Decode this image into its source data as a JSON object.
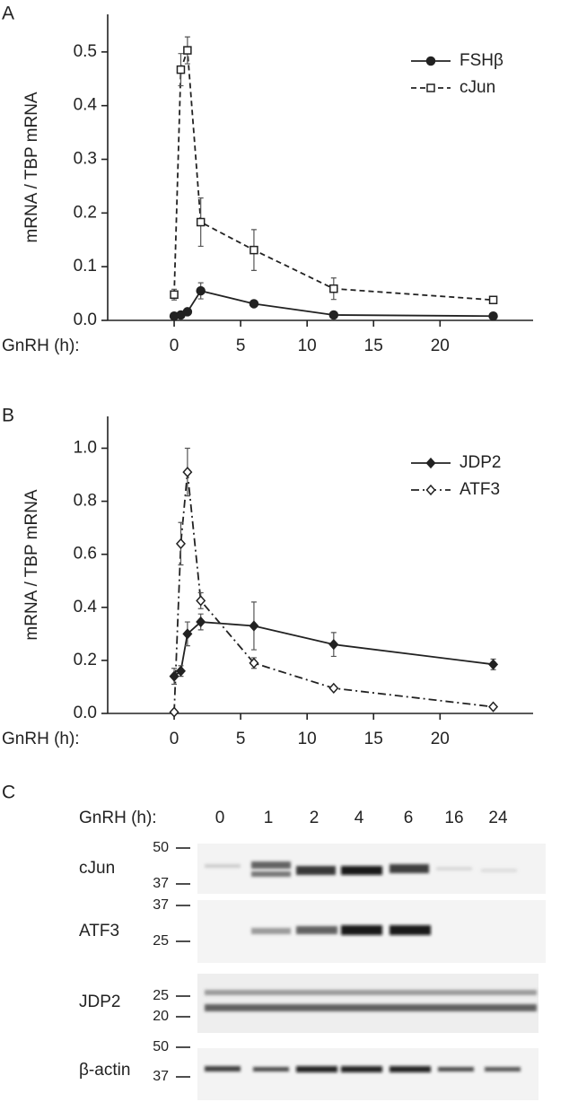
{
  "chart_data": [
    {
      "type": "line",
      "panel": "A",
      "y_label": "mRNA / TBP mRNA",
      "x_label": "GnRH (h):",
      "x": [
        0,
        0.5,
        1,
        2,
        6,
        12,
        24
      ],
      "xlim": [
        -5,
        27
      ],
      "xticks": [
        0,
        5,
        10,
        15,
        20
      ],
      "ylim": [
        0,
        0.57
      ],
      "yticks": [
        {
          "value": 0,
          "label": "0.0"
        },
        0.1,
        0.2,
        0.3,
        0.4,
        0.5
      ],
      "legend": "upper right",
      "series": [
        {
          "name": "FSHβ",
          "color": "#222222",
          "linestyle": "solid",
          "marker": "circle",
          "filled": true,
          "values": [
            0.008,
            0.01,
            0.016,
            0.055,
            0.031,
            0.01,
            0.008
          ],
          "errors": [
            0.002,
            0.002,
            0.003,
            0.015,
            0.004,
            0.002,
            0.002
          ]
        },
        {
          "name": "cJun",
          "color": "#222222",
          "linestyle": "dashed",
          "marker": "square",
          "filled": false,
          "values": [
            0.048,
            0.467,
            0.503,
            0.183,
            0.131,
            0.059,
            0.038
          ],
          "errors": [
            0.01,
            0.03,
            0.025,
            0.045,
            0.038,
            0.02,
            0.005
          ]
        }
      ]
    },
    {
      "type": "line",
      "panel": "B",
      "y_label": "mRNA / TBP mRNA",
      "x_label": "GnRH (h):",
      "x": [
        0,
        0.5,
        1,
        2,
        6,
        12,
        24
      ],
      "xlim": [
        -5,
        27
      ],
      "xticks": [
        0,
        5,
        10,
        15,
        20
      ],
      "ylim": [
        0,
        1.12
      ],
      "yticks": [
        {
          "value": 0,
          "label": "0.0"
        },
        0.2,
        0.4,
        0.6,
        0.8,
        {
          "value": 1,
          "label": "1.0"
        }
      ],
      "legend": "upper right",
      "series": [
        {
          "name": "JDP2",
          "color": "#222222",
          "linestyle": "solid",
          "marker": "diamond",
          "filled": true,
          "values": [
            0.14,
            0.16,
            0.3,
            0.345,
            0.33,
            0.26,
            0.185
          ],
          "errors": [
            0.03,
            0.02,
            0.045,
            0.03,
            0.09,
            0.045,
            0.02
          ]
        },
        {
          "name": "ATF3",
          "color": "#222222",
          "linestyle": "dashdot",
          "marker": "diamond",
          "filled": false,
          "values": [
            0.005,
            0.64,
            0.91,
            0.425,
            0.19,
            0.095,
            0.025
          ],
          "errors": [
            0.005,
            0.08,
            0.09,
            0.03,
            0.02,
            0.005,
            0.005
          ]
        }
      ]
    }
  ],
  "blot": {
    "panel": "C",
    "x_label": "GnRH (h):",
    "lanes": [
      "0",
      "1",
      "2",
      "4",
      "6",
      "16",
      "24"
    ],
    "rows": [
      {
        "label": "cJun",
        "markers": [
          "50",
          "37"
        ]
      },
      {
        "label": "ATF3",
        "markers": [
          "37",
          "25"
        ]
      },
      {
        "label": "JDP2",
        "markers": [
          "25",
          "20"
        ]
      },
      {
        "label": "β-actin",
        "markers": [
          "50",
          "37"
        ]
      }
    ]
  }
}
